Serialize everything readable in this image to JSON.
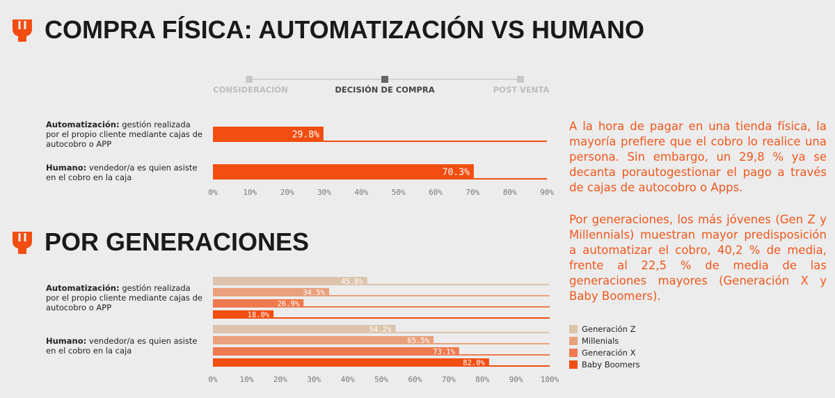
{
  "header": {
    "title": "COMPRA FÍSICA: AUTOMATIZACIÓN VS HUMANO"
  },
  "steps": [
    "CONSIDERACIÓN",
    "DECISIÓN DE COMPRA",
    "POST VENTA"
  ],
  "paragraphs": [
    "A la hora de pagar en una tienda física, la mayoría prefiere que el cobro lo realice una persona. Sin embargo, un 29,8 % ya se decanta porautogestionar el pago a través de cajas de autocobro o Apps.",
    "Por generaciones, los más jóvenes (Gen Z y Millennials) muestran mayor predisposición a automatizar el cobro, 40,2 % de media, frente al 22,5 % de media de las generaciones mayores (Generación X y Baby Boomers)."
  ],
  "chart_data": [
    {
      "type": "hbar",
      "color": "#f24e12",
      "categories": [
        "Automatización: gestión realizada por el propio cliente mediante cajas de autocobro o APP",
        "Humano: vendedor/a es quien asiste en el cobro en la caja"
      ],
      "values": [
        29.8,
        70.3
      ],
      "value_labels": [
        "29.8%",
        "70.3%"
      ],
      "xlim": [
        0,
        90
      ],
      "xticks": [
        {
          "value": 0,
          "label": "0%"
        },
        {
          "value": 10,
          "label": "10%"
        },
        {
          "value": 20,
          "label": "20%"
        },
        {
          "value": 30,
          "label": "30%"
        },
        {
          "value": 40,
          "label": "40%"
        },
        {
          "value": 50,
          "label": "50%"
        },
        {
          "value": 60,
          "label": "60%"
        },
        {
          "value": 70,
          "label": "70%"
        },
        {
          "value": 80,
          "label": "80%"
        },
        {
          "value": 90,
          "label": "90%"
        }
      ]
    },
    {
      "type": "hbar",
      "title": "POR GENERACIONES",
      "categories": [
        "Automatización: gestión realizada por el propio cliente mediante cajas de autocobro o APP",
        "Humano: vendedor/a es quien asiste en el cobro en la caja"
      ],
      "series": [
        {
          "name": "Generación Z",
          "color": "#dcc4ac",
          "values": [
            45.8,
            54.2
          ],
          "value_labels": [
            "45.8%",
            "54.2%"
          ]
        },
        {
          "name": "Millenials",
          "color": "#e9a07d",
          "values": [
            34.5,
            65.5
          ],
          "value_labels": [
            "34.5%",
            "65.5%"
          ]
        },
        {
          "name": "Generación X",
          "color": "#ee7a4e",
          "values": [
            26.9,
            73.1
          ],
          "value_labels": [
            "26.9%",
            "73.1%"
          ]
        },
        {
          "name": "Baby Boomers",
          "color": "#f24e12",
          "values": [
            18.0,
            82.0
          ],
          "value_labels": [
            "18.0%",
            "82.0%"
          ]
        }
      ],
      "xlim": [
        0,
        100
      ],
      "xticks": [
        {
          "value": 0,
          "label": "0%"
        },
        {
          "value": 10,
          "label": "10%"
        },
        {
          "value": 20,
          "label": "20%"
        },
        {
          "value": 30,
          "label": "30%"
        },
        {
          "value": 40,
          "label": "40%"
        },
        {
          "value": 50,
          "label": "50%"
        },
        {
          "value": 60,
          "label": "60%"
        },
        {
          "value": 70,
          "label": "70%"
        },
        {
          "value": 80,
          "label": "80%"
        },
        {
          "value": 90,
          "label": "90%"
        },
        {
          "value": 100,
          "label": "100%"
        }
      ]
    }
  ]
}
